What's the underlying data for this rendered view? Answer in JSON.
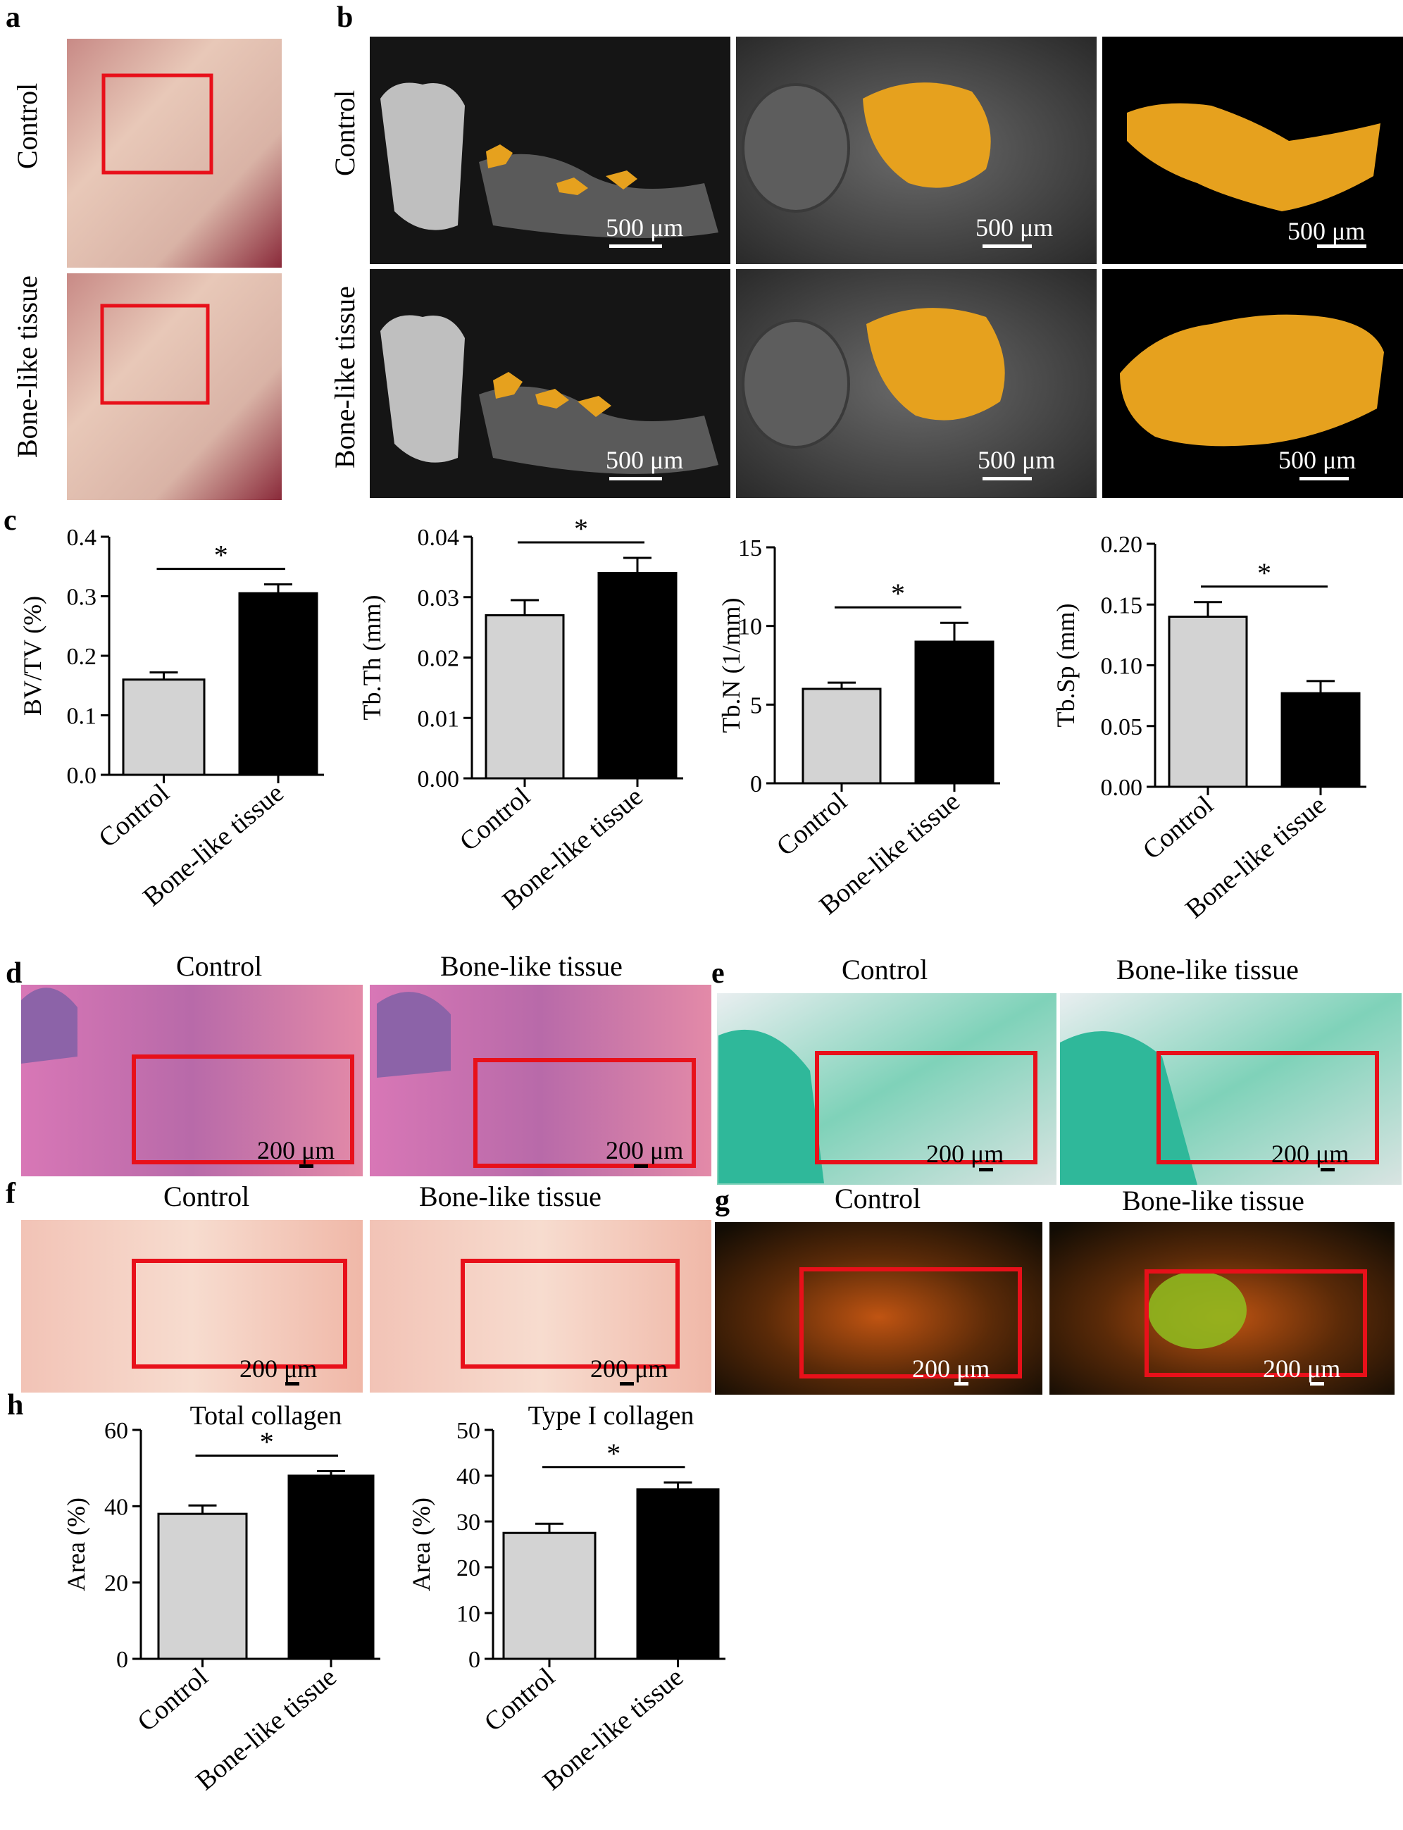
{
  "panel_letters": {
    "a": "a",
    "b": "b",
    "c": "c",
    "d": "d",
    "e": "e",
    "f": "f",
    "g": "g",
    "h": "h"
  },
  "row_labels": {
    "control": "Control",
    "bone": "Bone-like tissue"
  },
  "scale_bars": {
    "micro_ct": "500 μm",
    "histology": "200 μm"
  },
  "colors": {
    "control_bar": "#d3d3d3",
    "bone_bar": "#000000",
    "roi_box": "#e8101a",
    "bone_render": "#e6a11e",
    "ct_background": "#111111",
    "he_stain": "#c85a9a",
    "masson_stain": "#2fb89a",
    "sirius_stain": "#e88f7a",
    "polar_bg": "#1a1208"
  },
  "chart_data": [
    {
      "id": "bvtv",
      "type": "bar",
      "categories": [
        "Control",
        "Bone-like tissue"
      ],
      "values": [
        0.16,
        0.305
      ],
      "errors": [
        0.012,
        0.015
      ],
      "ylabel": "BV/TV (%)",
      "ylim": [
        0,
        0.4
      ],
      "ticks": [
        "0.0",
        "0.1",
        "0.2",
        "0.3",
        "0.4"
      ],
      "significance": "*"
    },
    {
      "id": "tbth",
      "type": "bar",
      "categories": [
        "Control",
        "Bone-like tissue"
      ],
      "values": [
        0.027,
        0.034
      ],
      "errors": [
        0.0025,
        0.0025
      ],
      "ylabel": "Tb.Th (mm)",
      "ylim": [
        0,
        0.04
      ],
      "ticks": [
        "0.00",
        "0.01",
        "0.02",
        "0.03",
        "0.04"
      ],
      "significance": "*"
    },
    {
      "id": "tbn",
      "type": "bar",
      "categories": [
        "Control",
        "Bone-like tissue"
      ],
      "values": [
        6.0,
        9.0
      ],
      "errors": [
        0.4,
        1.2
      ],
      "ylabel": "Tb.N (1/mm)",
      "ylim": [
        0,
        15
      ],
      "ticks": [
        "0",
        "5",
        "10",
        "15"
      ],
      "significance": "*"
    },
    {
      "id": "tbsp",
      "type": "bar",
      "categories": [
        "Control",
        "Bone-like tissue"
      ],
      "values": [
        0.14,
        0.077
      ],
      "errors": [
        0.012,
        0.01
      ],
      "ylabel": "Tb.Sp (mm)",
      "ylim": [
        0,
        0.2
      ],
      "ticks": [
        "0.00",
        "0.05",
        "0.10",
        "0.15",
        "0.20"
      ],
      "significance": "*"
    },
    {
      "id": "totalcol",
      "type": "bar",
      "title": "Total collagen",
      "categories": [
        "Control",
        "Bone-like tissue"
      ],
      "values": [
        38,
        48
      ],
      "errors": [
        2.2,
        1.2
      ],
      "ylabel": "Area (%)",
      "ylim": [
        0,
        60
      ],
      "ticks": [
        "0",
        "20",
        "40",
        "60"
      ],
      "significance": "*"
    },
    {
      "id": "type1col",
      "type": "bar",
      "title": "Type I collagen",
      "categories": [
        "Control",
        "Bone-like tissue"
      ],
      "values": [
        27.5,
        37
      ],
      "errors": [
        2.0,
        1.5
      ],
      "ylabel": "Area (%)",
      "ylim": [
        0,
        50
      ],
      "ticks": [
        "0",
        "10",
        "20",
        "30",
        "40",
        "50"
      ],
      "significance": "*"
    }
  ]
}
